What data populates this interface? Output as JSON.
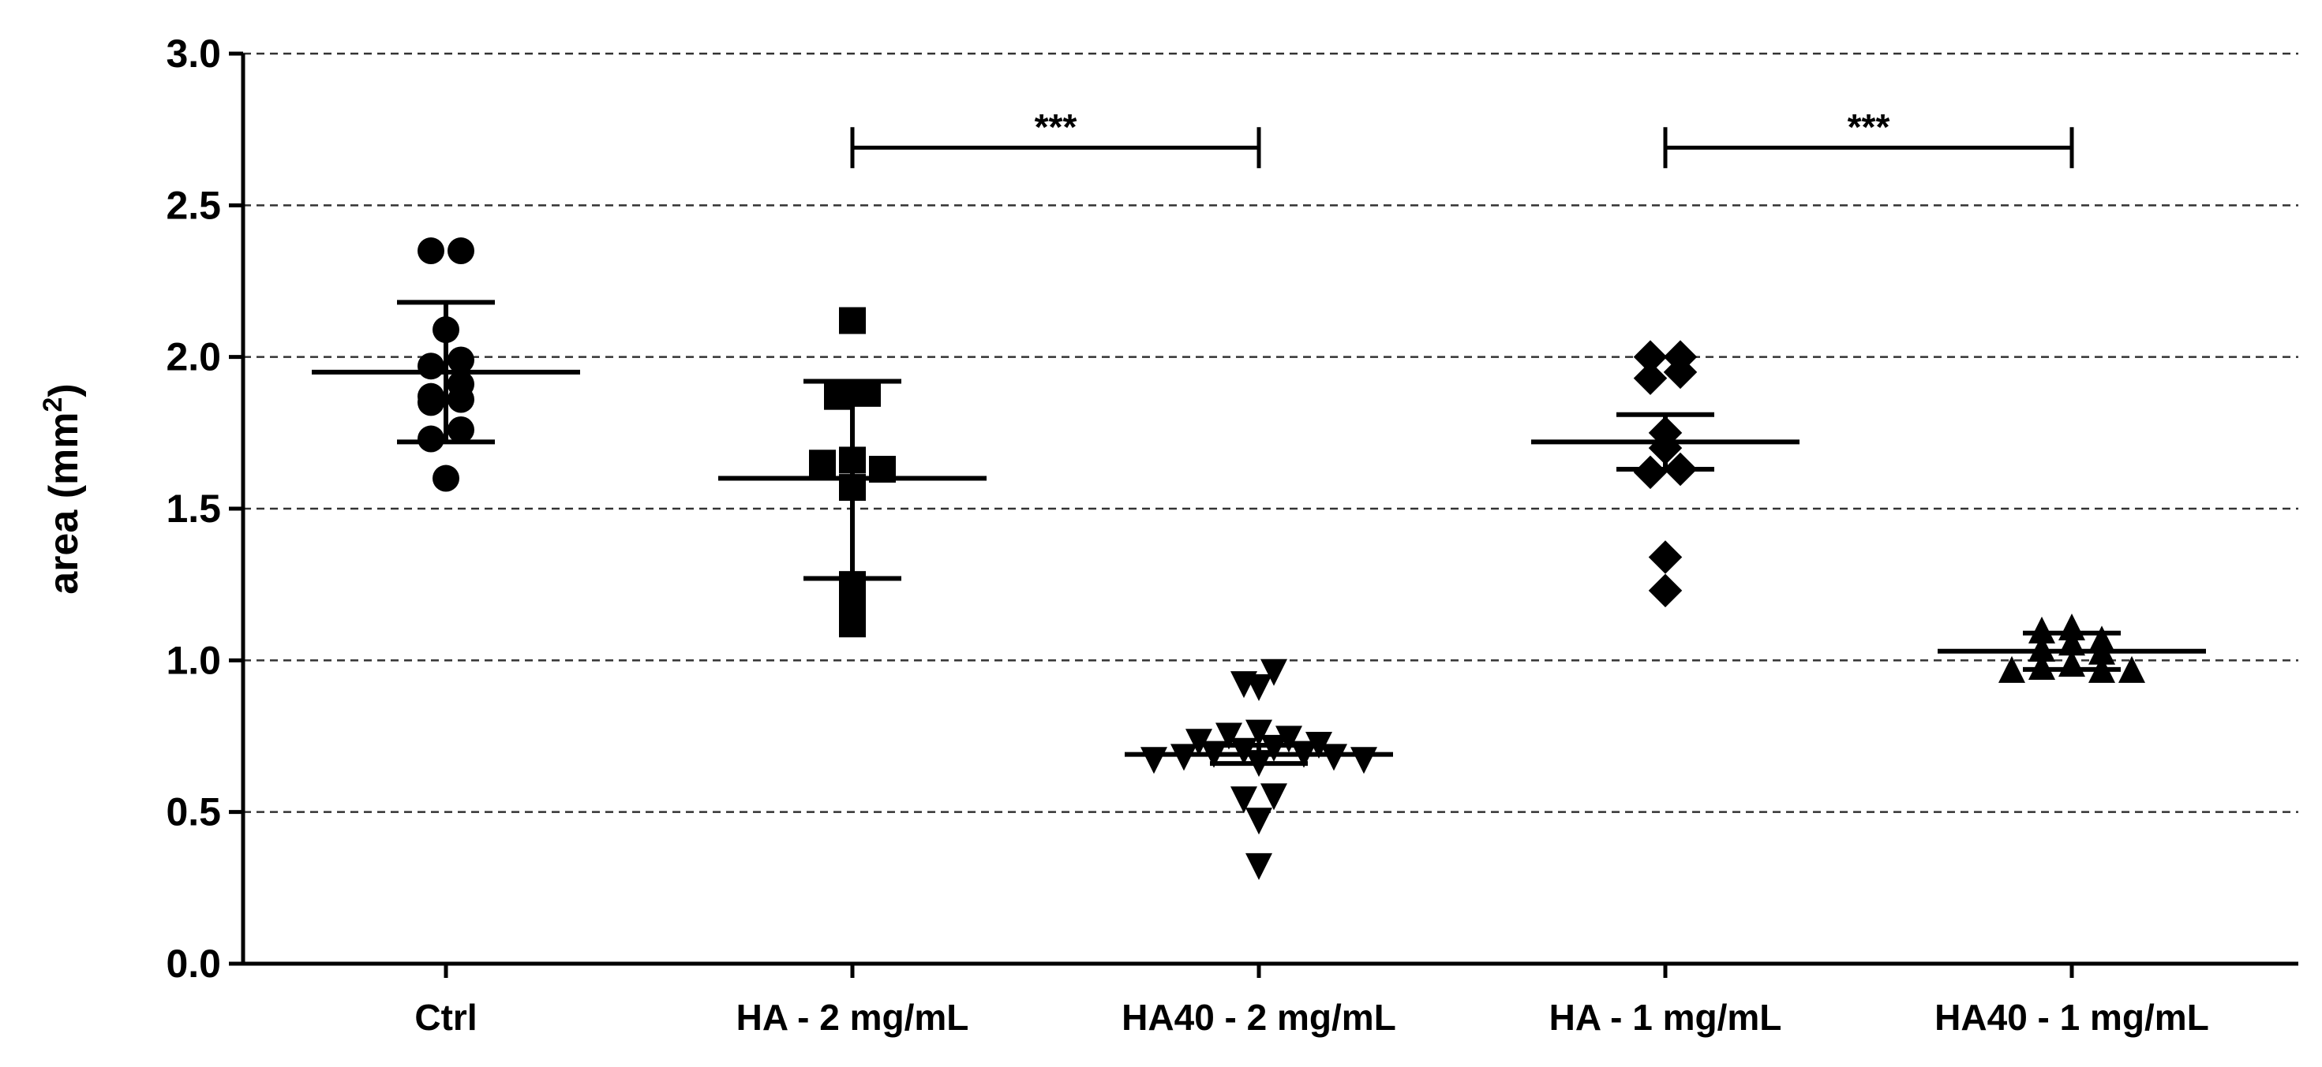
{
  "chart_data": {
    "type": "scatter",
    "ylabel": "area (mm²)",
    "ylabel_main": "area (mm",
    "ylabel_sup": "2",
    "ylabel_close": ")",
    "ylim": [
      0,
      3.0
    ],
    "yticks": [
      "0.0",
      "0.5",
      "1.0",
      "1.5",
      "2.0",
      "2.5",
      "3.0"
    ],
    "grid": "horizontal dashed",
    "categories": [
      "Ctrl",
      "HA - 2 mg/mL",
      "HA40 - 2 mg/mL",
      "HA - 1 mg/mL",
      "HA40 - 1 mg/mL"
    ],
    "series": [
      {
        "category": "Ctrl",
        "marker": "circle",
        "values": [
          2.35,
          2.35,
          2.09,
          1.99,
          1.97,
          1.91,
          1.87,
          1.86,
          1.85,
          1.76,
          1.73,
          1.6
        ],
        "mean": 1.95,
        "err_low": 1.72,
        "err_high": 2.18
      },
      {
        "category": "HA - 2 mg/mL",
        "marker": "square",
        "values": [
          2.12,
          1.88,
          1.87,
          1.66,
          1.65,
          1.63,
          1.57,
          1.25,
          1.18,
          1.12
        ],
        "mean": 1.6,
        "err_low": 1.27,
        "err_high": 1.92
      },
      {
        "category": "HA40 - 2 mg/mL",
        "marker": "triangle-down",
        "values": [
          0.96,
          0.92,
          0.91,
          0.76,
          0.75,
          0.74,
          0.73,
          0.72,
          0.71,
          0.7,
          0.69,
          0.69,
          0.68,
          0.68,
          0.67,
          0.67,
          0.66,
          0.55,
          0.54,
          0.47,
          0.32
        ],
        "mean": 0.69,
        "err_low": 0.66,
        "err_high": 0.72
      },
      {
        "category": "HA - 1 mg/mL",
        "marker": "diamond",
        "values": [
          2.0,
          2.0,
          1.95,
          1.93,
          1.75,
          1.7,
          1.63,
          1.62,
          1.34,
          1.23
        ],
        "mean": 1.72,
        "err_low": 1.63,
        "err_high": 1.81
      },
      {
        "category": "HA40 - 1 mg/mL",
        "marker": "triangle-up",
        "values": [
          1.11,
          1.1,
          1.07,
          1.06,
          1.04,
          1.03,
          0.99,
          0.98,
          0.97,
          0.97,
          0.97
        ],
        "mean": 1.03,
        "err_low": 0.97,
        "err_high": 1.09
      }
    ],
    "annotations": [
      {
        "text": "***",
        "from": "HA - 2 mg/mL",
        "to": "HA40 - 2 mg/mL",
        "y": 2.69
      },
      {
        "text": "***",
        "from": "HA - 1 mg/mL",
        "to": "HA40 - 1 mg/mL",
        "y": 2.69
      }
    ],
    "colors": {
      "marker": "#000000",
      "grid": "#333333",
      "axis": "#000000"
    }
  }
}
